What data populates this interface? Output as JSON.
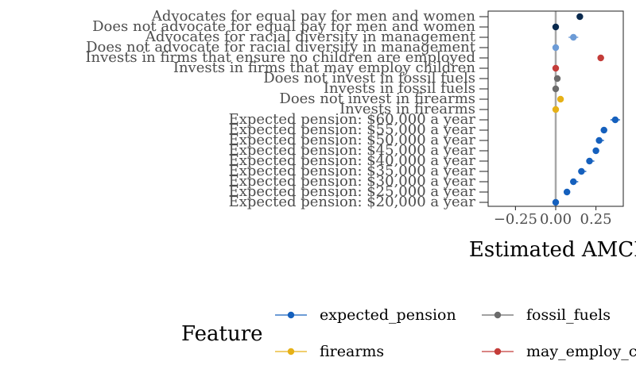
{
  "chart_data": {
    "type": "scatter",
    "orientation": "horizontal",
    "xlabel": "Estimated AMCE",
    "xlim": [
      -0.42,
      0.42
    ],
    "x_ticks": [
      {
        "value": -0.25,
        "label": "−0.25"
      },
      {
        "value": 0.0,
        "label": "0.00"
      },
      {
        "value": 0.25,
        "label": "0.25"
      }
    ],
    "reference_line": 0,
    "grid": false,
    "legend_title": "Feature",
    "legend_position": "bottom",
    "legend": [
      {
        "name": "expected_pension",
        "color": "#1560bd"
      },
      {
        "name": "fossil_fuels",
        "color": "#6b6b6b"
      },
      {
        "name": "firearms",
        "color": "#e6b117"
      },
      {
        "name": "may_employ_children",
        "color": "#c43c39"
      }
    ],
    "categories": [
      "Advocates for equal pay for men and women",
      "Does not advocate for equal pay for men and women",
      "Advocates for racial diversity in management",
      "Does not advocate for racial diversity in management",
      "Invests in firms that ensure no children are employed",
      "Invests in firms that may employ children",
      "Does not invest in fossil fuels",
      "Invests in fossil fuels",
      "Does not invest in firearms",
      "Invests in firearms",
      "Expected pension: $60,000 a year",
      "Expected pension: $55,000 a year",
      "Expected pension: $50,000 a year",
      "Expected pension: $45,000 a year",
      "Expected pension: $40,000 a year",
      "Expected pension: $35,000 a year",
      "Expected pension: $30,000 a year",
      "Expected pension: $25,000 a year",
      "Expected pension: $20,000 a year"
    ],
    "points": [
      {
        "label": "Advocates for equal pay for men and women",
        "estimate": 0.15,
        "lower": 0.14,
        "upper": 0.16,
        "color": "#0a2a4e"
      },
      {
        "label": "Does not advocate for equal pay for men and women",
        "estimate": 0.0,
        "lower": 0.0,
        "upper": 0.0,
        "color": "#0a2a4e"
      },
      {
        "label": "Advocates for racial diversity in management",
        "estimate": 0.11,
        "lower": 0.08,
        "upper": 0.14,
        "color": "#6c9bd6"
      },
      {
        "label": "Does not advocate for racial diversity in management",
        "estimate": 0.0,
        "lower": 0.0,
        "upper": 0.0,
        "color": "#6c9bd6"
      },
      {
        "label": "Invests in firms that ensure no children are employed",
        "estimate": 0.28,
        "lower": 0.26,
        "upper": 0.3,
        "color": "#c43c39"
      },
      {
        "label": "Invests in firms that may employ children",
        "estimate": 0.0,
        "lower": 0.0,
        "upper": 0.0,
        "color": "#c43c39"
      },
      {
        "label": "Does not invest in fossil fuels",
        "estimate": 0.01,
        "lower": 0.0,
        "upper": 0.02,
        "color": "#6b6b6b"
      },
      {
        "label": "Invests in fossil fuels",
        "estimate": 0.0,
        "lower": 0.0,
        "upper": 0.0,
        "color": "#6b6b6b"
      },
      {
        "label": "Does not invest in firearms",
        "estimate": 0.03,
        "lower": 0.01,
        "upper": 0.04,
        "color": "#e6b117"
      },
      {
        "label": "Invests in firearms",
        "estimate": 0.0,
        "lower": 0.0,
        "upper": 0.0,
        "color": "#e6b117"
      },
      {
        "label": "Expected pension: $60,000 a year",
        "estimate": 0.37,
        "lower": 0.34,
        "upper": 0.4,
        "color": "#1560bd"
      },
      {
        "label": "Expected pension: $55,000 a year",
        "estimate": 0.3,
        "lower": 0.28,
        "upper": 0.32,
        "color": "#1560bd"
      },
      {
        "label": "Expected pension: $50,000 a year",
        "estimate": 0.27,
        "lower": 0.25,
        "upper": 0.3,
        "color": "#1560bd"
      },
      {
        "label": "Expected pension: $45,000 a year",
        "estimate": 0.25,
        "lower": 0.23,
        "upper": 0.27,
        "color": "#1560bd"
      },
      {
        "label": "Expected pension: $40,000 a year",
        "estimate": 0.21,
        "lower": 0.19,
        "upper": 0.24,
        "color": "#1560bd"
      },
      {
        "label": "Expected pension: $35,000 a year",
        "estimate": 0.16,
        "lower": 0.14,
        "upper": 0.19,
        "color": "#1560bd"
      },
      {
        "label": "Expected pension: $30,000 a year",
        "estimate": 0.11,
        "lower": 0.09,
        "upper": 0.14,
        "color": "#1560bd"
      },
      {
        "label": "Expected pension: $25,000 a year",
        "estimate": 0.07,
        "lower": 0.05,
        "upper": 0.09,
        "color": "#1560bd"
      },
      {
        "label": "Expected pension: $20,000 a year",
        "estimate": 0.0,
        "lower": 0.0,
        "upper": 0.0,
        "color": "#1560bd"
      }
    ]
  }
}
